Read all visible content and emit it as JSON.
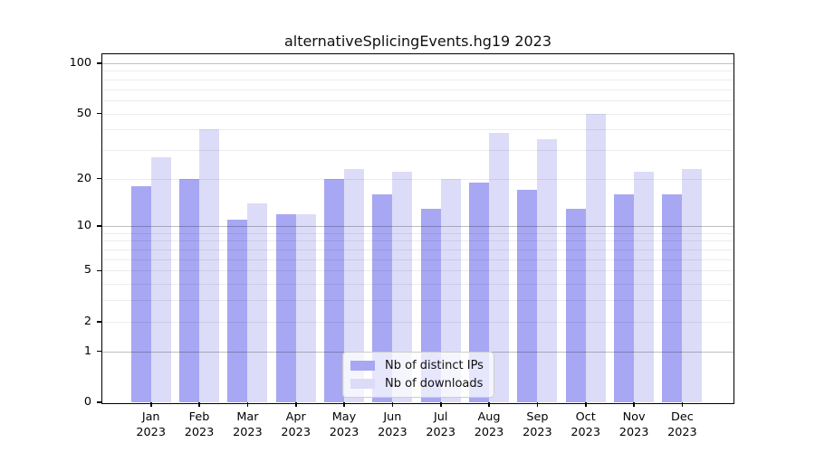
{
  "chart_data": {
    "type": "bar",
    "title": "alternativeSplicingEvents.hg19 2023",
    "categories": [
      "Jan",
      "Feb",
      "Mar",
      "Apr",
      "May",
      "Jun",
      "Jul",
      "Aug",
      "Sep",
      "Oct",
      "Nov",
      "Dec"
    ],
    "x_tick_year": "2023",
    "series": [
      {
        "name": "Nb of distinct IPs",
        "color": "#a7a7f3",
        "values": [
          18,
          20,
          11,
          12,
          20,
          16,
          13,
          19,
          17,
          13,
          16,
          16
        ]
      },
      {
        "name": "Nb of downloads",
        "color": "#dcdcf8",
        "values": [
          27,
          40,
          14,
          12,
          23,
          22,
          20,
          38,
          35,
          50,
          22,
          23
        ]
      }
    ],
    "y_axis": {
      "scale": "log10(value+1)",
      "tick_values": [
        100,
        50,
        20,
        10,
        5,
        2,
        1,
        0
      ],
      "range": [
        0,
        113
      ]
    },
    "grid": {
      "decade_lines": [
        1,
        10,
        100
      ],
      "minor_lines": [
        2,
        3,
        4,
        5,
        6,
        7,
        8,
        9,
        20,
        30,
        40,
        50,
        60,
        70,
        80,
        90
      ],
      "grid_on": true
    },
    "legend": {
      "position": "lower-center"
    },
    "colors": {
      "background": "#ffffff",
      "axis": "#000000",
      "decade_grid": "rgba(0,0,0,0.25)",
      "minor_grid": "rgba(0,0,0,0.075)"
    }
  }
}
